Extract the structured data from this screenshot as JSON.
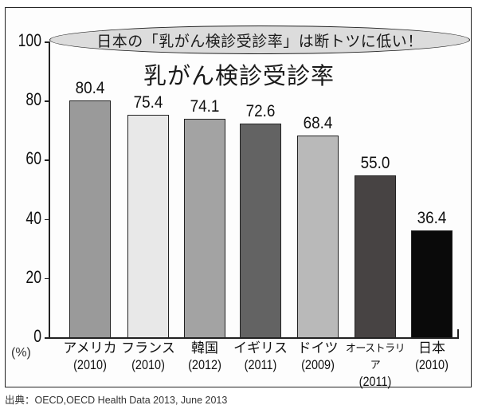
{
  "banner": "日本の「乳がん検診受診率」は断トツに低い！",
  "title": "乳がん検診受診率",
  "y_unit": "(%)",
  "source": "出典：OECD,OECD Health Data 2013, June 2013",
  "y_ticks": [
    "0",
    "20",
    "40",
    "60",
    "80",
    "100"
  ],
  "bars": [
    {
      "name": "アメリカ",
      "year": "(2010)",
      "value": "80.4",
      "color": "#9a9a9a"
    },
    {
      "name": "フランス",
      "year": "(2010)",
      "value": "75.4",
      "color": "#e8e8e8"
    },
    {
      "name": "韓国",
      "year": "(2012)",
      "value": "74.1",
      "color": "#a3a3a3"
    },
    {
      "name": "イギリス",
      "year": "(2011)",
      "value": "72.6",
      "color": "#636363"
    },
    {
      "name": "ドイツ",
      "year": "(2009)",
      "value": "68.4",
      "color": "#b9b9b9"
    },
    {
      "name": "オーストラリア",
      "year": "(2011)",
      "value": "55.0",
      "color": "#474343"
    },
    {
      "name": "日本",
      "year": "(2010)",
      "value": "36.4",
      "color": "#0a0a0a"
    }
  ],
  "chart_data": {
    "type": "bar",
    "title": "乳がん検診受診率",
    "subtitle": "日本の「乳がん検診受診率」は断トツに低い！",
    "categories": [
      "アメリカ (2010)",
      "フランス (2010)",
      "韓国 (2012)",
      "イギリス (2011)",
      "ドイツ (2009)",
      "オーストラリア (2011)",
      "日本 (2010)"
    ],
    "values": [
      80.4,
      75.4,
      74.1,
      72.6,
      68.4,
      55.0,
      36.4
    ],
    "xlabel": "",
    "ylabel": "(%)",
    "ylim": [
      0,
      100
    ],
    "yticks": [
      0,
      20,
      40,
      60,
      80,
      100
    ],
    "grid": false,
    "legend": null,
    "data_labels": true,
    "source": "出典：OECD,OECD Health Data 2013, June 2013"
  }
}
